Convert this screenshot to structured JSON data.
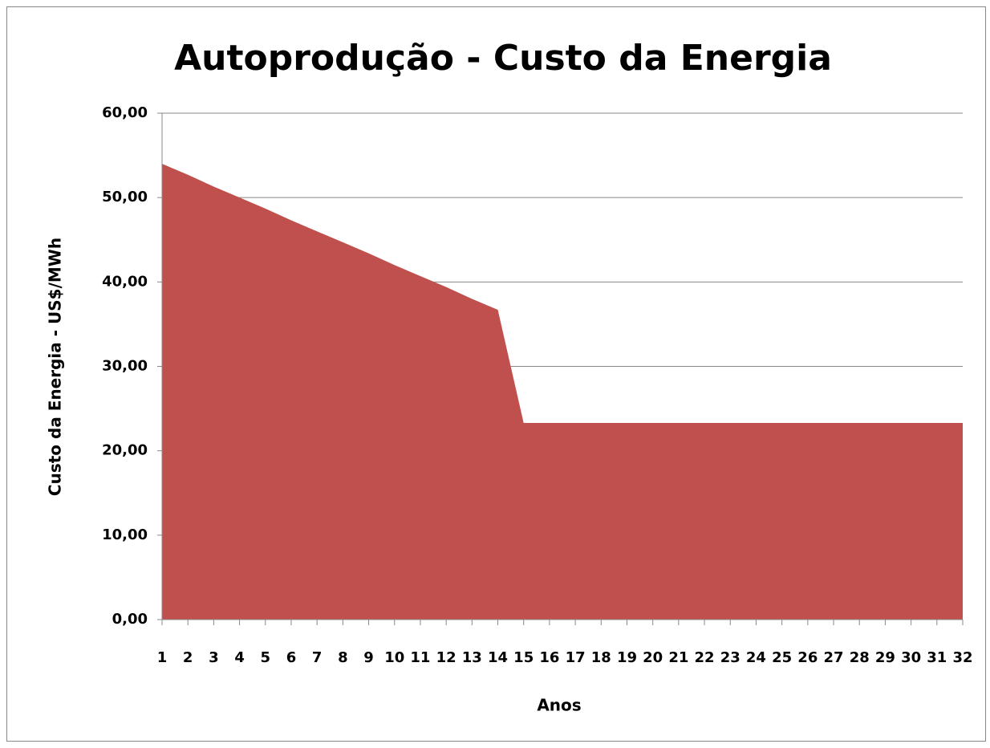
{
  "chart_data": {
    "type": "area",
    "title": "Autoprodução - Custo da Energia",
    "x_label": "Anos",
    "y_label": "Custo da Energia - US$/MWh",
    "categories": [
      "1",
      "2",
      "3",
      "4",
      "5",
      "6",
      "7",
      "8",
      "9",
      "10",
      "11",
      "12",
      "13",
      "14",
      "15",
      "16",
      "17",
      "18",
      "19",
      "20",
      "21",
      "22",
      "23",
      "24",
      "25",
      "26",
      "27",
      "28",
      "29",
      "30",
      "31",
      "32"
    ],
    "values": [
      54.0,
      52.7,
      51.3,
      50.0,
      48.7,
      47.3,
      46.0,
      44.7,
      43.4,
      42.0,
      40.7,
      39.4,
      38.0,
      36.7,
      23.3,
      23.3,
      23.3,
      23.3,
      23.3,
      23.3,
      23.3,
      23.3,
      23.3,
      23.3,
      23.3,
      23.3,
      23.3,
      23.3,
      23.3,
      23.3,
      23.3,
      23.3
    ],
    "color": "#c0504d",
    "ylim": [
      0,
      60
    ],
    "yticks": [
      {
        "value": 0,
        "label": "0,00"
      },
      {
        "value": 10,
        "label": "10,00"
      },
      {
        "value": 20,
        "label": "20,00"
      },
      {
        "value": 30,
        "label": "30,00"
      },
      {
        "value": 40,
        "label": "40,00"
      },
      {
        "value": 50,
        "label": "50,00"
      },
      {
        "value": 60,
        "label": "60,00"
      }
    ],
    "grid": true
  }
}
